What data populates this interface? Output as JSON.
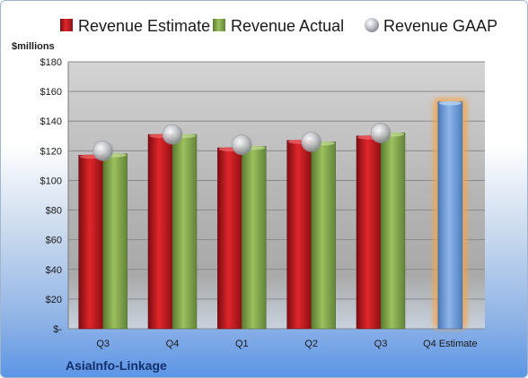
{
  "chart_data": {
    "type": "bar",
    "categories": [
      "Q3",
      "Q4",
      "Q1",
      "Q2",
      "Q3",
      "Q4 Estimate"
    ],
    "series": [
      {
        "name": "Revenue Estimate",
        "values": [
          117,
          131,
          122,
          127,
          130,
          null
        ],
        "color": "#c0181c"
      },
      {
        "name": "Revenue Actual",
        "values": [
          118,
          131,
          123,
          126,
          132,
          null
        ],
        "color": "#7ea04a"
      },
      {
        "name": "Revenue GAAP",
        "values": [
          120,
          131,
          124,
          126,
          132,
          null
        ],
        "color": "#b8bcc4"
      }
    ],
    "estimate_bar": {
      "category": "Q4 Estimate",
      "value": 153,
      "color": "#6f9ad4",
      "glow": "#f5a54a"
    },
    "ylabel": "$millions",
    "ylim": [
      0,
      180
    ],
    "yticks": [
      0,
      20,
      40,
      60,
      80,
      100,
      120,
      140,
      160,
      180
    ],
    "ytick_labels": [
      "$-",
      "$20",
      "$40",
      "$60",
      "$80",
      "$100",
      "$120",
      "$140",
      "$160",
      "$180"
    ],
    "grid": true,
    "legend_position": "top"
  },
  "company": "AsiaInfo-Linkage"
}
